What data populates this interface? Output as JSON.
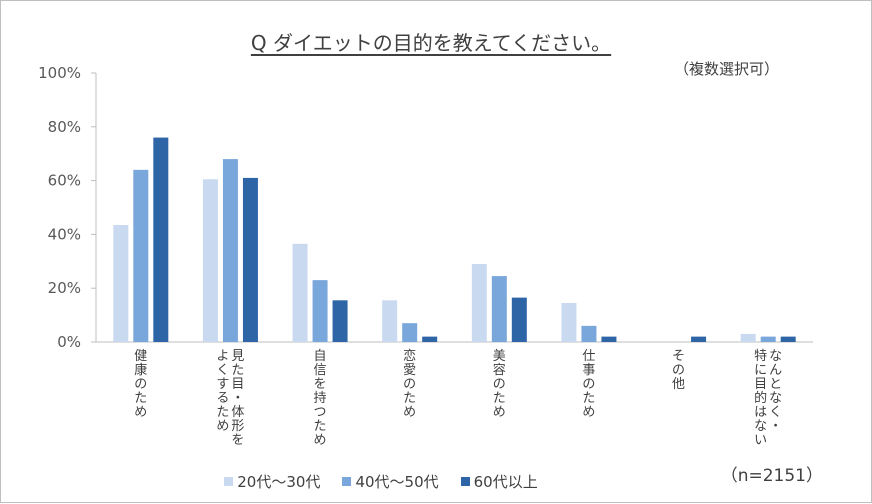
{
  "chart_data": {
    "type": "bar",
    "title": "Q ダイエットの目的を教えてください。",
    "note": "（複数選択可）",
    "sample": "（n=2151）",
    "ylim": [
      0,
      100
    ],
    "yticks": [
      "0%",
      "20%",
      "40%",
      "60%",
      "80%",
      "100%"
    ],
    "categories": [
      [
        "健康のため"
      ],
      [
        "見た目・体形を",
        "よくするため"
      ],
      [
        "自信を持つため"
      ],
      [
        "恋愛のため"
      ],
      [
        "美容のため"
      ],
      [
        "仕事のため"
      ],
      [
        "その他"
      ],
      [
        "なんとなく・",
        "特に目的はない"
      ]
    ],
    "series": [
      {
        "name": "20代〜30代",
        "color": "#c9d9ef",
        "values": [
          43.5,
          60.5,
          36.5,
          15.5,
          29,
          14.5,
          0,
          3
        ]
      },
      {
        "name": "40代〜50代",
        "color": "#7aa7db",
        "values": [
          64,
          68,
          23,
          7,
          24.5,
          6,
          0,
          2
        ]
      },
      {
        "name": "60代以上",
        "color": "#2e65a7",
        "values": [
          76,
          61,
          15.5,
          2,
          16.5,
          2,
          2,
          2
        ]
      }
    ],
    "grid": false,
    "legend_position": "bottom"
  }
}
